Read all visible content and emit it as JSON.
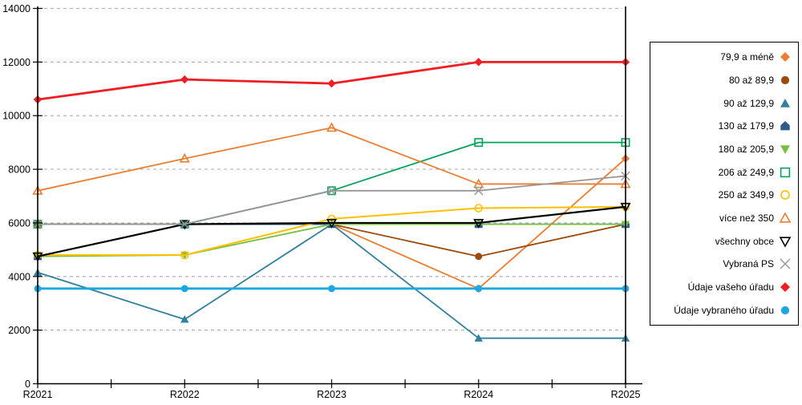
{
  "chart_data": {
    "type": "line",
    "title": "",
    "xlabel": "",
    "ylabel": "",
    "categories": [
      "R2021",
      "R2022",
      "R2023",
      "R2024",
      "R2025"
    ],
    "y_ticks": [
      "0",
      "2000",
      "4000",
      "6000",
      "8000",
      "10000",
      "12000",
      "14000"
    ],
    "ylim": [
      0,
      14000
    ],
    "grid": "horizontal-dashed",
    "legend_position": "right",
    "series": [
      {
        "name": "79,9 a méně",
        "marker": "diamond",
        "fill": "solid",
        "color": "#ED7D31",
        "lw": 1.8,
        "values": [
          5950,
          5950,
          5950,
          3550,
          8400
        ]
      },
      {
        "name": "80 až 89,9",
        "marker": "circle",
        "fill": "solid",
        "color": "#9C4A0B",
        "lw": 1.8,
        "values": [
          5950,
          5950,
          5950,
          4750,
          5950
        ]
      },
      {
        "name": "90 až 129,9",
        "marker": "triangle-up",
        "fill": "solid",
        "color": "#31809E",
        "lw": 1.8,
        "values": [
          4150,
          2400,
          5950,
          1700,
          1700
        ]
      },
      {
        "name": "130 až 179,9",
        "marker": "pentagon",
        "fill": "solid",
        "color": "#2E5C8A",
        "lw": 1.8,
        "values": [
          4750,
          5950,
          5950,
          5950,
          5950
        ]
      },
      {
        "name": "180 až 205,9",
        "marker": "triangle-down",
        "fill": "solid",
        "color": "#76C043",
        "lw": 1.8,
        "values": [
          4750,
          4800,
          5950,
          5950,
          5950
        ]
      },
      {
        "name": "206 až 249,9",
        "marker": "square",
        "fill": "hollow",
        "color": "#00A35A",
        "lw": 1.8,
        "values": [
          5950,
          5950,
          7200,
          9000,
          9000
        ]
      },
      {
        "name": "250 až 349,9",
        "marker": "circle",
        "fill": "hollow",
        "color": "#FFC000",
        "lw": 2.0,
        "values": [
          4800,
          4800,
          6150,
          6550,
          6600
        ]
      },
      {
        "name": "více než 350",
        "marker": "triangle-up",
        "fill": "hollow",
        "color": "#ED7D31",
        "lw": 1.8,
        "values": [
          7200,
          8400,
          9550,
          7450,
          7450
        ]
      },
      {
        "name": "všechny obce",
        "marker": "triangle-down",
        "fill": "hollow",
        "color": "#000000",
        "lw": 2.2,
        "values": [
          4750,
          5950,
          6000,
          6000,
          6600
        ]
      },
      {
        "name": "Vybraná PS",
        "marker": "x",
        "fill": "line",
        "color": "#969696",
        "lw": 1.8,
        "values": [
          5950,
          5950,
          7200,
          7200,
          7750
        ]
      },
      {
        "name": "Údaje vašeho úřadu",
        "marker": "diamond",
        "fill": "solid",
        "color": "#F01E23",
        "lw": 2.8,
        "values": [
          10600,
          11350,
          11200,
          12000,
          12000
        ]
      },
      {
        "name": "Údaje vybraného úřadu",
        "marker": "circle",
        "fill": "solid",
        "color": "#1CA7E0",
        "lw": 2.8,
        "values": [
          3550,
          3550,
          3550,
          3550,
          3550
        ]
      }
    ]
  }
}
